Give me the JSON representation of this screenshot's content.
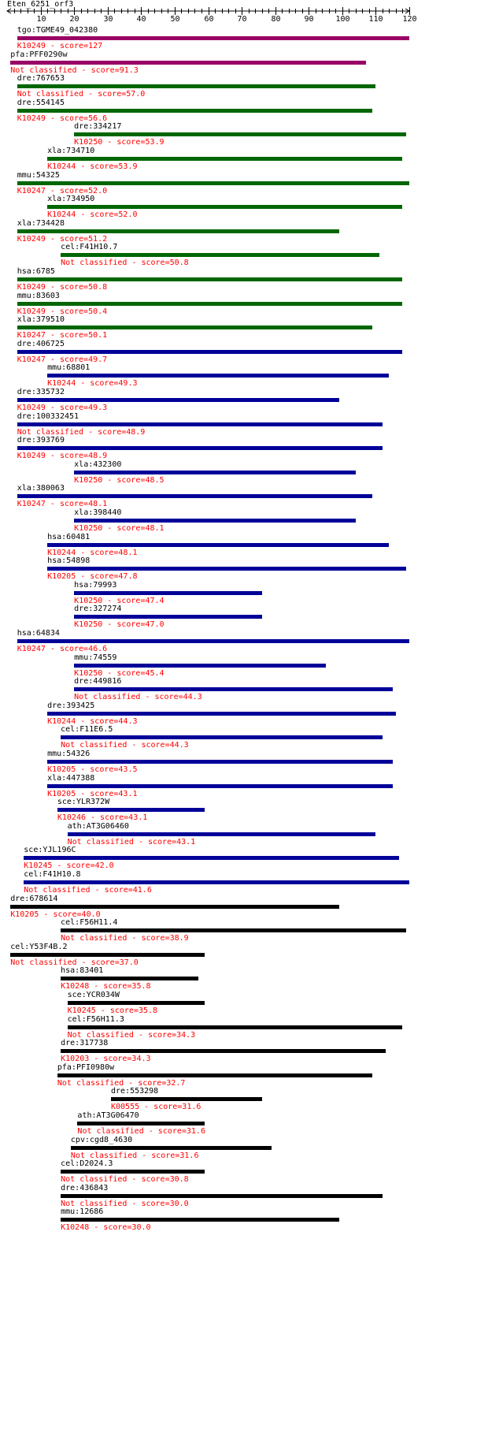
{
  "title": "Eten_6251_orf3",
  "colors": {
    "score_text": "#ff0000",
    "ruler": "#000000",
    "bar_purple": "#990066",
    "bar_green": "#006600",
    "bar_blue": "#000099",
    "bar_black": "#000000"
  },
  "ruler": {
    "min": 0,
    "max": 120,
    "major_ticks": [
      10,
      20,
      30,
      40,
      50,
      60,
      70,
      80,
      90,
      100,
      110,
      120
    ],
    "minor_step": 2
  },
  "hits": [
    {
      "name": "tgo:TGME49_042380",
      "score_label": "K10249 - score=127",
      "start": 3,
      "end": 120,
      "color": "purple"
    },
    {
      "name": "pfa:PFF0290w",
      "score_label": "Not classified - score=91.3",
      "start": 1,
      "end": 107,
      "color": "purple"
    },
    {
      "name": "dre:767653",
      "score_label": "Not classified - score=57.0",
      "start": 3,
      "end": 110,
      "color": "green"
    },
    {
      "name": "dre:554145",
      "score_label": "K10249 - score=56.6",
      "start": 3,
      "end": 109,
      "color": "green"
    },
    {
      "name": "dre:334217",
      "score_label": "K10250 - score=53.9",
      "start": 20,
      "end": 119,
      "color": "green"
    },
    {
      "name": "xla:734710",
      "score_label": "K10244 - score=53.9",
      "start": 12,
      "end": 118,
      "color": "green"
    },
    {
      "name": "mmu:54325",
      "score_label": "K10247 - score=52.0",
      "start": 3,
      "end": 120,
      "color": "green"
    },
    {
      "name": "xla:734950",
      "score_label": "K10244 - score=52.0",
      "start": 12,
      "end": 118,
      "color": "green"
    },
    {
      "name": "xla:734428",
      "score_label": "K10249 - score=51.2",
      "start": 3,
      "end": 99,
      "color": "green"
    },
    {
      "name": "cel:F41H10.7",
      "score_label": "Not classified - score=50.8",
      "start": 16,
      "end": 111,
      "color": "green"
    },
    {
      "name": "hsa:6785",
      "score_label": "K10249 - score=50.8",
      "start": 3,
      "end": 118,
      "color": "green"
    },
    {
      "name": "mmu:83603",
      "score_label": "K10249 - score=50.4",
      "start": 3,
      "end": 118,
      "color": "green"
    },
    {
      "name": "xla:379510",
      "score_label": "K10247 - score=50.1",
      "start": 3,
      "end": 109,
      "color": "green"
    },
    {
      "name": "dre:406725",
      "score_label": "K10247 - score=49.7",
      "start": 3,
      "end": 118,
      "color": "blue"
    },
    {
      "name": "mmu:68801",
      "score_label": "K10244 - score=49.3",
      "start": 12,
      "end": 114,
      "color": "blue"
    },
    {
      "name": "dre:335732",
      "score_label": "K10249 - score=49.3",
      "start": 3,
      "end": 99,
      "color": "blue"
    },
    {
      "name": "dre:100332451",
      "score_label": "Not classified - score=48.9",
      "start": 3,
      "end": 112,
      "color": "blue"
    },
    {
      "name": "dre:393769",
      "score_label": "K10249 - score=48.9",
      "start": 3,
      "end": 112,
      "color": "blue"
    },
    {
      "name": "xla:432300",
      "score_label": "K10250 - score=48.5",
      "start": 20,
      "end": 104,
      "color": "blue"
    },
    {
      "name": "xla:380063",
      "score_label": "K10247 - score=48.1",
      "start": 3,
      "end": 109,
      "color": "blue"
    },
    {
      "name": "xla:398440",
      "score_label": "K10250 - score=48.1",
      "start": 20,
      "end": 104,
      "color": "blue"
    },
    {
      "name": "hsa:60481",
      "score_label": "K10244 - score=48.1",
      "start": 12,
      "end": 114,
      "color": "blue"
    },
    {
      "name": "hsa:54898",
      "score_label": "K10205 - score=47.8",
      "start": 12,
      "end": 119,
      "color": "blue"
    },
    {
      "name": "hsa:79993",
      "score_label": "K10250 - score=47.4",
      "start": 20,
      "end": 76,
      "color": "blue"
    },
    {
      "name": "dre:327274",
      "score_label": "K10250 - score=47.0",
      "start": 20,
      "end": 76,
      "color": "blue"
    },
    {
      "name": "hsa:64834",
      "score_label": "K10247 - score=46.6",
      "start": 3,
      "end": 120,
      "color": "blue"
    },
    {
      "name": "mmu:74559",
      "score_label": "K10250 - score=45.4",
      "start": 20,
      "end": 95,
      "color": "blue"
    },
    {
      "name": "dre:449816",
      "score_label": "Not classified - score=44.3",
      "start": 20,
      "end": 115,
      "color": "blue"
    },
    {
      "name": "dre:393425",
      "score_label": "K10244 - score=44.3",
      "start": 12,
      "end": 116,
      "color": "blue"
    },
    {
      "name": "cel:F11E6.5",
      "score_label": "Not classified - score=44.3",
      "start": 16,
      "end": 112,
      "color": "blue"
    },
    {
      "name": "mmu:54326",
      "score_label": "K10205 - score=43.5",
      "start": 12,
      "end": 115,
      "color": "blue"
    },
    {
      "name": "xla:447388",
      "score_label": "K10205 - score=43.1",
      "start": 12,
      "end": 115,
      "color": "blue"
    },
    {
      "name": "sce:YLR372W",
      "score_label": "K10246 - score=43.1",
      "start": 15,
      "end": 59,
      "color": "blue"
    },
    {
      "name": "ath:AT3G06460",
      "score_label": "Not classified - score=43.1",
      "start": 18,
      "end": 110,
      "color": "blue"
    },
    {
      "name": "sce:YJL196C",
      "score_label": "K10245 - score=42.0",
      "start": 5,
      "end": 117,
      "color": "blue"
    },
    {
      "name": "cel:F41H10.8",
      "score_label": "Not classified - score=41.6",
      "start": 5,
      "end": 120,
      "color": "blue"
    },
    {
      "name": "dre:678614",
      "score_label": "K10205 - score=40.0",
      "start": 1,
      "end": 99,
      "color": "black"
    },
    {
      "name": "cel:F56H11.4",
      "score_label": "Not classified - score=38.9",
      "start": 16,
      "end": 119,
      "color": "black"
    },
    {
      "name": "cel:Y53F4B.2",
      "score_label": "Not classified - score=37.0",
      "start": 1,
      "end": 59,
      "color": "black"
    },
    {
      "name": "hsa:83401",
      "score_label": "K10248 - score=35.8",
      "start": 16,
      "end": 57,
      "color": "black"
    },
    {
      "name": "sce:YCR034W",
      "score_label": "K10245 - score=35.8",
      "start": 18,
      "end": 59,
      "color": "black"
    },
    {
      "name": "cel:F56H11.3",
      "score_label": "Not classified - score=34.3",
      "start": 18,
      "end": 118,
      "color": "black"
    },
    {
      "name": "dre:317738",
      "score_label": "K10203 - score=34.3",
      "start": 16,
      "end": 113,
      "color": "black"
    },
    {
      "name": "pfa:PFI0980w",
      "score_label": "Not classified - score=32.7",
      "start": 15,
      "end": 109,
      "color": "black"
    },
    {
      "name": "dre:553298",
      "score_label": "K00555 - score=31.6",
      "start": 31,
      "end": 76,
      "color": "black"
    },
    {
      "name": "ath:AT3G06470",
      "score_label": "Not classified - score=31.6",
      "start": 21,
      "end": 59,
      "color": "black"
    },
    {
      "name": "cpv:cgd8_4630",
      "score_label": "Not classified - score=31.6",
      "start": 19,
      "end": 79,
      "color": "black"
    },
    {
      "name": "cel:D2024.3",
      "score_label": "Not classified - score=30.8",
      "start": 16,
      "end": 59,
      "color": "black"
    },
    {
      "name": "dre:436843",
      "score_label": "Not classified - score=30.0",
      "start": 16,
      "end": 112,
      "color": "black"
    },
    {
      "name": "mmu:12686",
      "score_label": "K10248 - score=30.0",
      "start": 16,
      "end": 99,
      "color": "black"
    }
  ]
}
